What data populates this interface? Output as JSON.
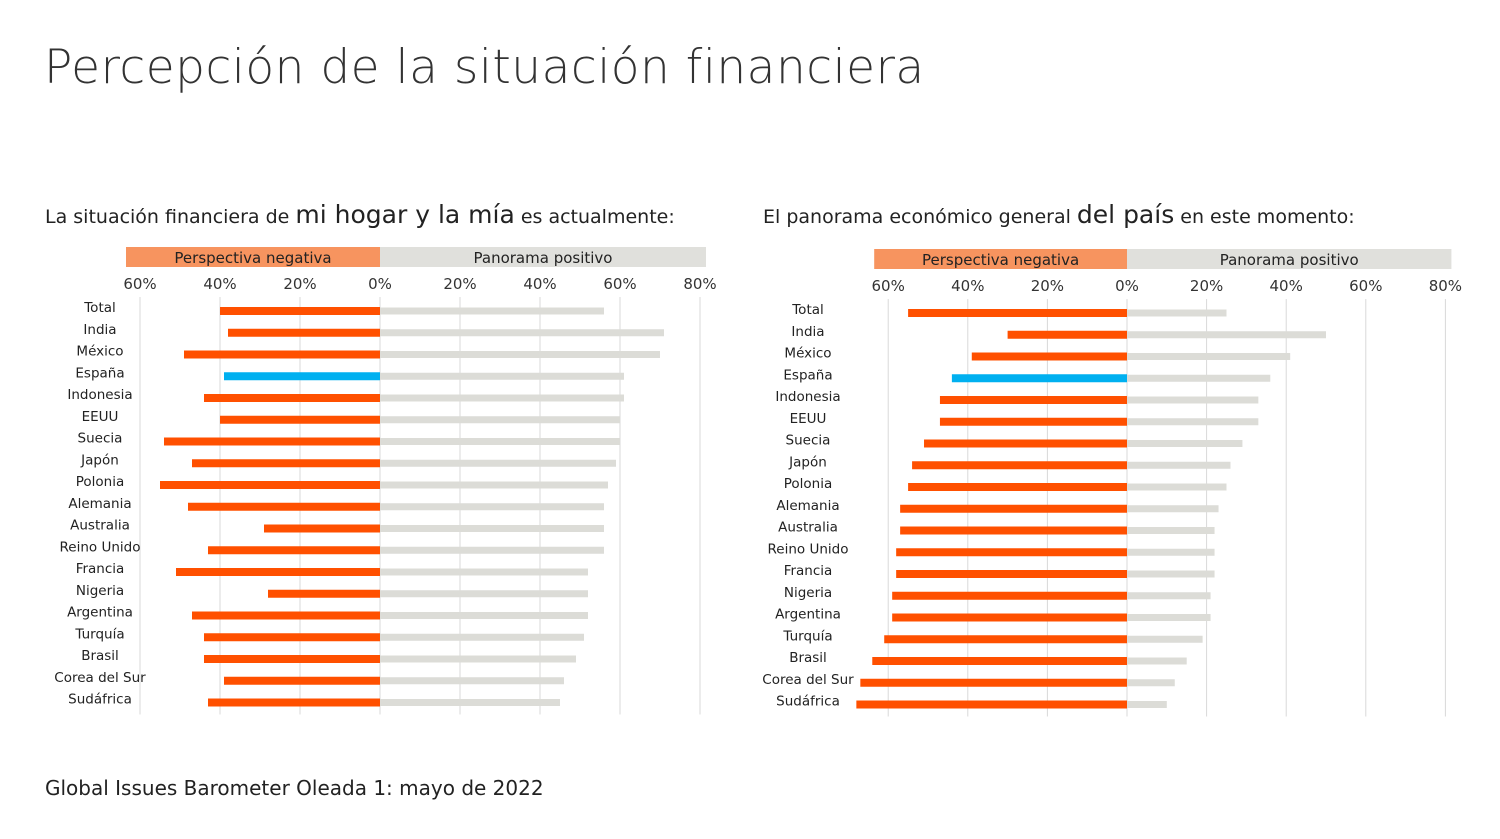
{
  "title": "Percepción de la situación financiera",
  "footer": "Global Issues Barometer Oleada 1: mayo de 2022",
  "colors": {
    "negative": "#ff5000",
    "highlight": "#00b0f0",
    "positive": "#dcdcd7",
    "negative_header": "#f7945f",
    "positive_header": "#e0e0dc",
    "grid": "#d9d9d9"
  },
  "chart_data": [
    {
      "type": "bar",
      "orientation": "horizontal-diverging",
      "subtitle": {
        "pre": "La situación financiera de ",
        "emph": "mi hogar y la mía",
        "post": " es actualmente:"
      },
      "header_negative": "Perspectiva negativa",
      "header_positive": "Panorama positivo",
      "tick_labels": [
        "60%",
        "40%",
        "20%",
        "0%",
        "20%",
        "40%",
        "60%",
        "80%"
      ],
      "xlim": [
        -60,
        80
      ],
      "grid": true,
      "highlight_category": "España",
      "categories": [
        "Total",
        "India",
        "México",
        "España",
        "Indonesia",
        "EEUU",
        "Suecia",
        "Japón",
        "Polonia",
        "Alemania",
        "Australia",
        "Reino Unido",
        "Francia",
        "Nigeria",
        "Argentina",
        "Turquía",
        "Brasil",
        "Corea del Sur",
        "Sudáfrica"
      ],
      "series": [
        {
          "name": "Perspectiva negativa",
          "values": [
            40,
            38,
            49,
            39,
            44,
            40,
            54,
            47,
            55,
            48,
            29,
            43,
            51,
            28,
            47,
            44,
            44,
            39,
            43
          ]
        },
        {
          "name": "Panorama positivo",
          "values": [
            56,
            71,
            70,
            61,
            61,
            60,
            60,
            59,
            57,
            56,
            56,
            56,
            52,
            52,
            52,
            51,
            49,
            46,
            45
          ]
        }
      ]
    },
    {
      "type": "bar",
      "orientation": "horizontal-diverging",
      "subtitle": {
        "pre": "El panorama económico general ",
        "emph": "del país",
        "post": " en este momento:"
      },
      "header_negative": "Perspectiva negativa",
      "header_positive": "Panorama positivo",
      "tick_labels": [
        "60%",
        "40%",
        "20%",
        "0%",
        "20%",
        "40%",
        "60%",
        "80%"
      ],
      "xlim": [
        -60,
        80
      ],
      "grid": true,
      "highlight_category": "España",
      "categories": [
        "Total",
        "India",
        "México",
        "España",
        "Indonesia",
        "EEUU",
        "Suecia",
        "Japón",
        "Polonia",
        "Alemania",
        "Australia",
        "Reino Unido",
        "Francia",
        "Nigeria",
        "Argentina",
        "Turquía",
        "Brasil",
        "Corea del Sur",
        "Sudáfrica"
      ],
      "series": [
        {
          "name": "Perspectiva negativa",
          "values": [
            55,
            30,
            39,
            44,
            47,
            47,
            51,
            54,
            55,
            57,
            57,
            58,
            58,
            59,
            59,
            61,
            64,
            67,
            68
          ]
        },
        {
          "name": "Panorama positivo",
          "values": [
            25,
            50,
            41,
            36,
            33,
            33,
            29,
            26,
            25,
            23,
            22,
            22,
            22,
            21,
            21,
            19,
            15,
            12,
            10
          ]
        }
      ]
    }
  ]
}
